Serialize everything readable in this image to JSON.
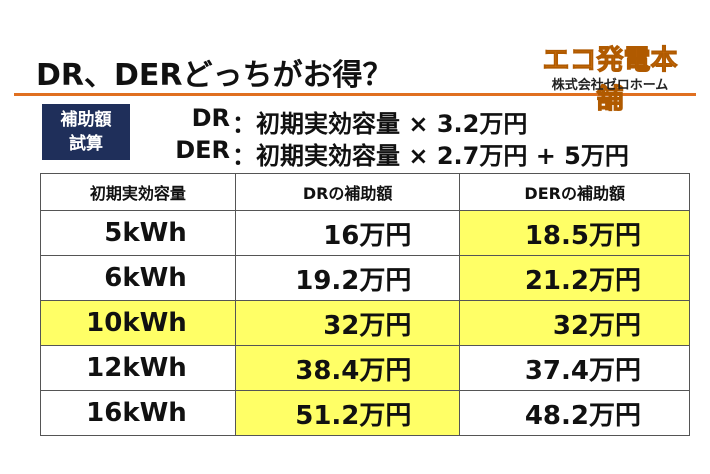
{
  "header": {
    "title": "DR、DERどっちがお得？"
  },
  "logo": {
    "brand": "エコ発電本舗",
    "company": "株式会社ゼロホーム"
  },
  "formula": {
    "label": [
      "補助額",
      "試算"
    ],
    "lines": [
      {
        "name": "DR",
        "text": "：初期実効容量 × 3.2万円"
      },
      {
        "name": "DER",
        "text": "：初期実効容量 × 2.7万円 + 5万円"
      }
    ]
  },
  "table": {
    "columns": [
      "初期実効容量",
      "DRの補助額",
      "DERの補助額"
    ],
    "rows": [
      [
        "5kWh",
        "16万円",
        "18.5万円"
      ],
      [
        "6kWh",
        "19.2万円",
        "21.2万円"
      ],
      [
        "10kWh",
        "32万円",
        "32万円"
      ],
      [
        "12kWh",
        "38.4万円",
        "37.4万円"
      ],
      [
        "16kWh",
        "51.2万円",
        "48.2万円"
      ]
    ],
    "highlight": [
      [
        false,
        false,
        true
      ],
      [
        false,
        false,
        true
      ],
      [
        true,
        true,
        true
      ],
      [
        false,
        true,
        false
      ],
      [
        false,
        true,
        false
      ]
    ],
    "highlight_color": "#ffff66"
  }
}
